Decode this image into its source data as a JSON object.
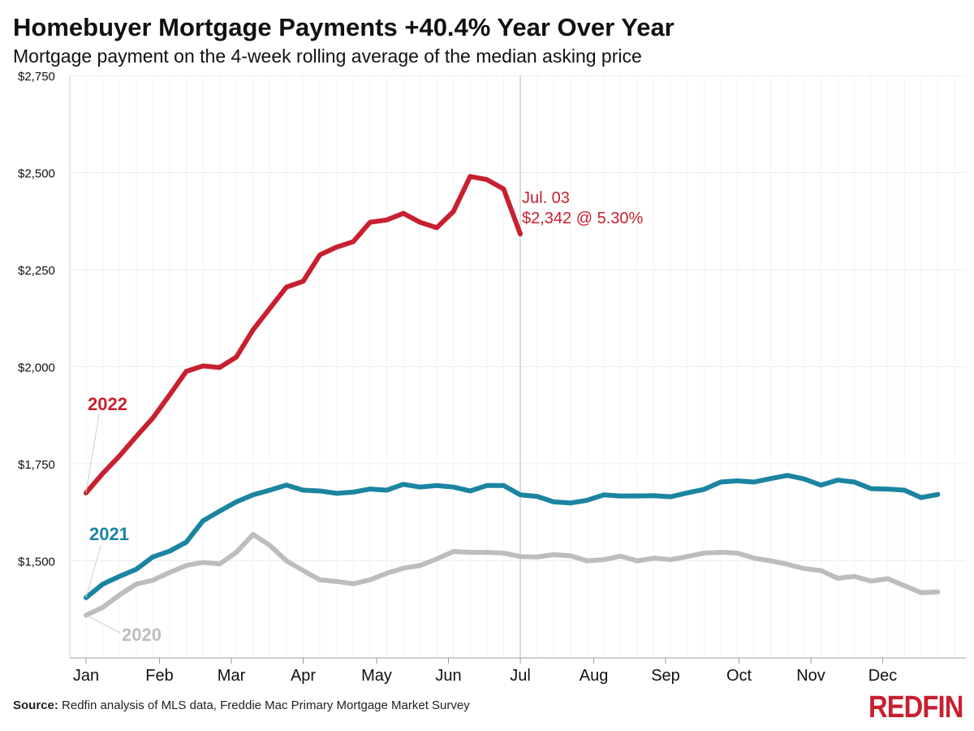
{
  "title": "Homebuyer Mortgage Payments +40.4% Year Over Year",
  "subtitle": "Mortgage payment on the 4-week rolling average of the median asking price",
  "footer": {
    "source_label": "Source:",
    "source_text": " Redfin analysis of MLS data, Freddie Mac Primary Mortgage Market Survey"
  },
  "brand": "REDFIN",
  "colors": {
    "s2022": "#c8202f",
    "s2021": "#1b85a1",
    "s2020": "#bdbdbd",
    "grid": "#ececec",
    "marker": "#cfcfcf"
  },
  "chart_data": {
    "type": "line",
    "ylim": [
      1250,
      2750
    ],
    "yticks": [
      1500,
      1750,
      2000,
      2250,
      2500,
      2750
    ],
    "ytick_labels": [
      "$1,500",
      "$1,750",
      "$2,000",
      "$2,250",
      "$2,500",
      "$2,750"
    ],
    "xlim": [
      0,
      52
    ],
    "months": [
      "Jan",
      "Feb",
      "Mar",
      "Apr",
      "May",
      "Jun",
      "Jul",
      "Aug",
      "Sep",
      "Oct",
      "Nov",
      "Dec"
    ],
    "month_weeks": [
      0,
      4.4,
      8.7,
      13,
      17.4,
      21.7,
      26,
      30.4,
      34.7,
      39.1,
      43.4,
      47.7
    ],
    "vline_week": 26,
    "annotation": {
      "line1": "Jul. 03",
      "line2": "$2,342 @ 5.30%"
    },
    "series": [
      {
        "name": "2022",
        "values": [
          1675,
          1725,
          1770,
          1820,
          1868,
          1927,
          1988,
          2002,
          1998,
          2025,
          2095,
          2150,
          2205,
          2220,
          2288,
          2308,
          2322,
          2372,
          2378,
          2395,
          2372,
          2358,
          2400,
          2490,
          2482,
          2458,
          2342
        ]
      },
      {
        "name": "2021",
        "values": [
          1405,
          1440,
          1460,
          1478,
          1510,
          1525,
          1548,
          1603,
          1628,
          1652,
          1670,
          1682,
          1695,
          1682,
          1680,
          1674,
          1677,
          1685,
          1682,
          1697,
          1690,
          1694,
          1690,
          1680,
          1694,
          1694,
          1670,
          1666,
          1652,
          1649,
          1656,
          1670,
          1667,
          1667,
          1668,
          1665,
          1675,
          1684,
          1703,
          1706,
          1703,
          1712,
          1720,
          1711,
          1695,
          1708,
          1703,
          1686,
          1685,
          1682,
          1663,
          1671
        ]
      },
      {
        "name": "2020",
        "values": [
          1360,
          1380,
          1412,
          1440,
          1450,
          1470,
          1488,
          1496,
          1492,
          1522,
          1568,
          1540,
          1500,
          1475,
          1451,
          1447,
          1441,
          1451,
          1468,
          1481,
          1488,
          1505,
          1524,
          1522,
          1522,
          1520,
          1511,
          1510,
          1516,
          1513,
          1500,
          1503,
          1512,
          1500,
          1507,
          1503,
          1511,
          1520,
          1522,
          1520,
          1507,
          1500,
          1491,
          1480,
          1475,
          1455,
          1460,
          1448,
          1454,
          1436,
          1418,
          1420
        ]
      }
    ]
  }
}
